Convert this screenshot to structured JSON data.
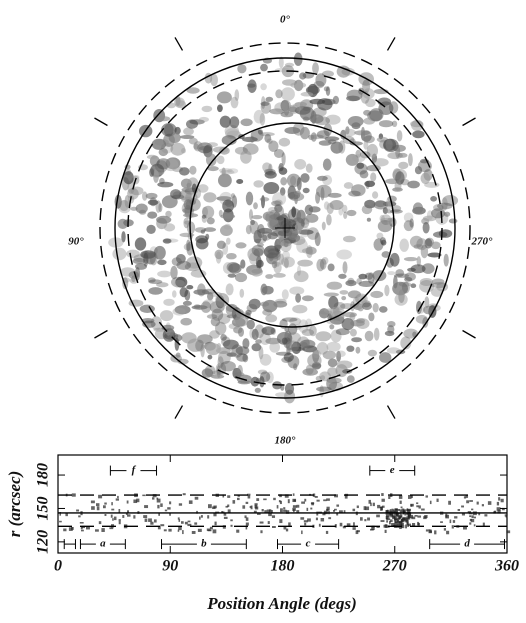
{
  "image": {
    "angle_labels": [
      "0°",
      "90°",
      "180°",
      "270°"
    ]
  },
  "chart_data": {
    "type": "interval",
    "xlabel": "Position Angle (degs)",
    "ylabel": "r (arcsec)",
    "xlim": [
      0,
      360
    ],
    "xticks": [
      0,
      90,
      180,
      270,
      360
    ],
    "ylim": [
      110,
      198
    ],
    "yticks": [
      120,
      150,
      180
    ],
    "reference_lines": [
      {
        "value": 146,
        "style": "solid"
      },
      {
        "value": 134,
        "style": "dashed"
      },
      {
        "value": 162,
        "style": "dashed"
      }
    ],
    "intervals": [
      {
        "label": null,
        "start": 5,
        "end": 14,
        "r": 118
      },
      {
        "label": "a",
        "start": 18,
        "end": 54,
        "r": 118
      },
      {
        "label": "b",
        "start": 83,
        "end": 151,
        "r": 118
      },
      {
        "label": "c",
        "start": 176,
        "end": 225,
        "r": 118
      },
      {
        "label": "d",
        "start": 298,
        "end": 358,
        "r": 118
      },
      {
        "label": "f",
        "start": 42,
        "end": 79,
        "r": 184
      },
      {
        "label": "e",
        "start": 250,
        "end": 286,
        "r": 184
      }
    ]
  }
}
